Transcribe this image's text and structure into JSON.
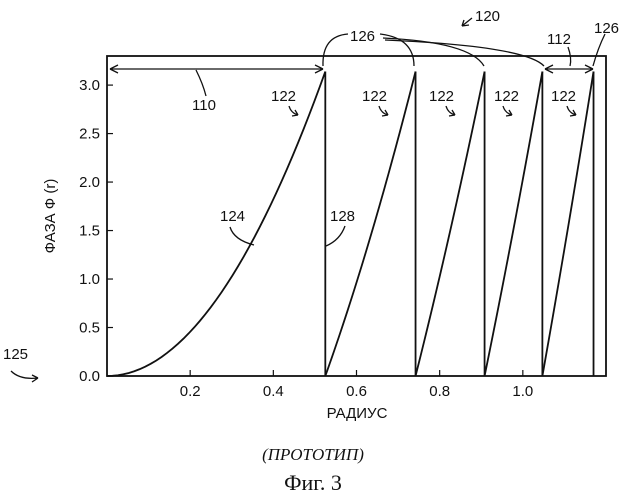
{
  "chart_data": {
    "type": "line",
    "xlabel": "РАДИУС",
    "ylabel": "ФАЗА Ф (r)",
    "xlim": [
      0.0,
      1.2
    ],
    "ylim": [
      0.0,
      3.3
    ],
    "x_ticks": [
      "0.2",
      "0.4",
      "0.6",
      "0.8",
      "1.0"
    ],
    "x_tick_values": [
      0.2,
      0.4,
      0.6,
      0.8,
      1.0
    ],
    "y_ticks": [
      "0.0",
      "0.5",
      "1.0",
      "1.5",
      "2.0",
      "2.5",
      "3.0"
    ],
    "y_tick_values": [
      0.0,
      0.5,
      1.0,
      1.5,
      2.0,
      2.5,
      3.0
    ],
    "grid": false,
    "series": [
      {
        "segments": [
          {
            "x_start": 0.0,
            "x_end": 0.525
          },
          {
            "x_start": 0.525,
            "x_end": 0.742
          },
          {
            "x_start": 0.742,
            "x_end": 0.908
          },
          {
            "x_start": 0.908,
            "x_end": 1.047
          },
          {
            "x_start": 1.047,
            "x_end": 1.17
          }
        ],
        "y_min": 0.0,
        "y_max": 3.14,
        "profile": "phase = 3.14 * ((r^2 - r_start^2) / (r_end^2 - r_start^2)), resetting to 0 at each zone edge"
      }
    ],
    "annotations": [
      {
        "label": "120",
        "role": "figure-reference"
      },
      {
        "label": "126",
        "role": "zone-boundary"
      },
      {
        "label": "126",
        "role": "zone-boundary"
      },
      {
        "label": "112",
        "role": "zone-width"
      },
      {
        "label": "110",
        "role": "zone-width"
      },
      {
        "label": "122",
        "role": "zone"
      },
      {
        "label": "122",
        "role": "zone"
      },
      {
        "label": "122",
        "role": "zone"
      },
      {
        "label": "122",
        "role": "zone"
      },
      {
        "label": "122",
        "role": "zone"
      },
      {
        "label": "124",
        "role": "curve"
      },
      {
        "label": "128",
        "role": "step"
      },
      {
        "label": "125",
        "role": "origin"
      }
    ]
  },
  "caption": {
    "prototype": "(ПРОТОТИП)",
    "figure": "Фиг. 3"
  },
  "colors": {
    "ink": "#111111",
    "background": "#ffffff"
  }
}
